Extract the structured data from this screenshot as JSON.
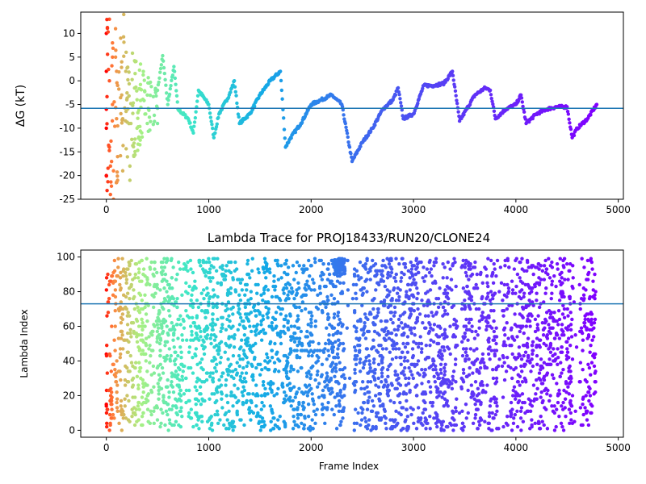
{
  "chart_data": [
    {
      "type": "scatter",
      "title": "",
      "xlabel": "",
      "ylabel": "ΔG (kT)",
      "xlim": [
        -250,
        5050
      ],
      "ylim": [
        -25,
        14.5
      ],
      "xticks": [
        0,
        1000,
        2000,
        3000,
        4000,
        5000
      ],
      "yticks": [
        -25,
        -20,
        -15,
        -10,
        -5,
        0,
        5,
        10
      ],
      "hline": -5.8,
      "grid": false,
      "colormap": "rainbow (frame index: red at 0 → violet at end)",
      "series": [
        {
          "points": [
            [
              0,
              10
            ],
            [
              0,
              2
            ],
            [
              0,
              -6
            ],
            [
              0,
              -10
            ],
            [
              0,
              -20
            ],
            [
              30,
              13
            ],
            [
              30,
              0
            ],
            [
              30,
              -14
            ],
            [
              40,
              -18
            ],
            [
              40,
              -24
            ],
            [
              60,
              8
            ],
            [
              60,
              5
            ],
            [
              60,
              -5
            ],
            [
              70,
              -19
            ],
            [
              70,
              -25
            ],
            [
              90,
              11
            ],
            [
              90,
              5
            ],
            [
              100,
              2
            ],
            [
              100,
              -8
            ],
            [
              110,
              -16
            ],
            [
              110,
              -21
            ],
            [
              140,
              9
            ],
            [
              150,
              4
            ],
            [
              150,
              -3
            ],
            [
              160,
              -8
            ],
            [
              160,
              -19
            ],
            [
              170,
              14
            ],
            [
              190,
              2
            ],
            [
              200,
              -4
            ],
            [
              200,
              15
            ],
            [
              230,
              -18
            ],
            [
              230,
              -21
            ],
            [
              240,
              -9
            ],
            [
              300,
              -4
            ],
            [
              300,
              -10
            ],
            [
              400,
              -9
            ],
            [
              400,
              -3
            ],
            [
              500,
              -9
            ],
            [
              500,
              -2
            ],
            [
              550,
              5.3
            ],
            [
              600,
              -5
            ],
            [
              660,
              3
            ],
            [
              700,
              -6
            ],
            [
              800,
              -8
            ],
            [
              850,
              -11
            ],
            [
              900,
              -2
            ],
            [
              1000,
              -5
            ],
            [
              1050,
              -12
            ],
            [
              1100,
              -7
            ],
            [
              1200,
              -3
            ],
            [
              1250,
              0
            ],
            [
              1300,
              -9
            ],
            [
              1400,
              -7
            ],
            [
              1500,
              -3
            ],
            [
              1600,
              0
            ],
            [
              1700,
              2
            ],
            [
              1750,
              -14
            ],
            [
              1800,
              -12
            ],
            [
              1900,
              -9
            ],
            [
              2000,
              -5
            ],
            [
              2100,
              -4
            ],
            [
              2200,
              -3
            ],
            [
              2300,
              -5
            ],
            [
              2400,
              -17
            ],
            [
              2500,
              -13
            ],
            [
              2600,
              -10
            ],
            [
              2700,
              -6
            ],
            [
              2800,
              -4
            ],
            [
              2850,
              -1.5
            ],
            [
              2900,
              -8
            ],
            [
              3000,
              -7
            ],
            [
              3100,
              -1
            ],
            [
              3200,
              -1
            ],
            [
              3300,
              -0.5
            ],
            [
              3380,
              2
            ],
            [
              3450,
              -8.5
            ],
            [
              3600,
              -3
            ],
            [
              3700,
              -1.5
            ],
            [
              3750,
              -2
            ],
            [
              3800,
              -8
            ],
            [
              3900,
              -6
            ],
            [
              4000,
              -5
            ],
            [
              4050,
              -3
            ],
            [
              4100,
              -9
            ],
            [
              4200,
              -7
            ],
            [
              4300,
              -6
            ],
            [
              4400,
              -5.5
            ],
            [
              4500,
              -5.5
            ],
            [
              4550,
              -12
            ],
            [
              4600,
              -10
            ],
            [
              4700,
              -8
            ],
            [
              4790,
              -5
            ]
          ]
        }
      ]
    },
    {
      "type": "scatter",
      "title": "Lambda Trace for PROJ18433/RUN20/CLONE24",
      "xlabel": "Frame Index",
      "ylabel": "Lambda Index",
      "xlim": [
        -250,
        5050
      ],
      "ylim": [
        -4,
        104
      ],
      "xticks": [
        0,
        1000,
        2000,
        3000,
        4000,
        5000
      ],
      "yticks": [
        0,
        20,
        40,
        60,
        80,
        100
      ],
      "hline": 73,
      "grid": false,
      "colormap": "rainbow (frame index: red at 0 → violet at end)",
      "series": [
        {
          "x_range": [
            0,
            4780
          ],
          "y_range": [
            0,
            99
          ],
          "note": "dense scatter of lambda index per frame, values spanning 0–99 across all frames with sparse bands near x≈2350, 3450, 3850, 4600"
        }
      ]
    }
  ]
}
